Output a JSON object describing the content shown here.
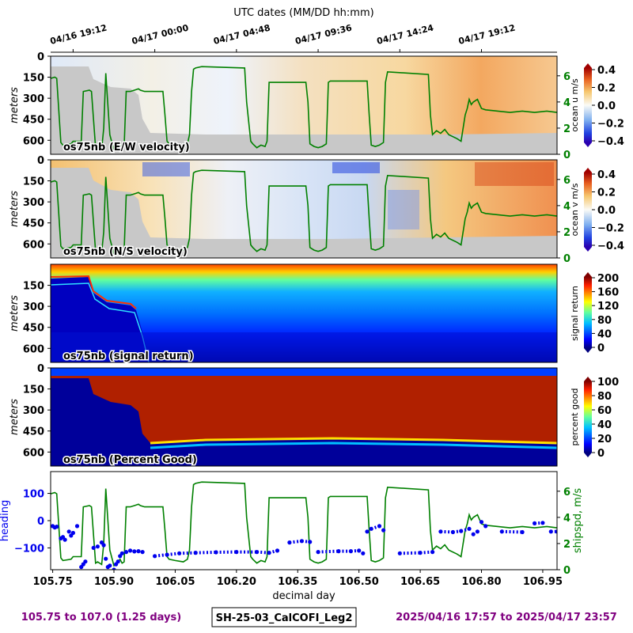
{
  "figure": {
    "top_axis_title": "UTC dates (MM/DD hh:mm)",
    "top_ticks": [
      "04/16 19:12",
      "04/17 00:00",
      "04/17 04:48",
      "04/17 09:36",
      "04/17 14:24",
      "04/17 19:12"
    ],
    "bottom_left_caption": "105.75 to 107.0 (1.25 days)",
    "bottom_center_caption": "SH-25-03_CalCOFI_Leg2",
    "bottom_right_caption": "2025/04/16 17:57 to 2025/04/17 23:57",
    "colors": {
      "caption": "#800080",
      "shipspeed": "#008000",
      "heading": "#0000ee",
      "land_mask": "#c8c8c8"
    }
  },
  "chart_data": [
    {
      "type": "heatmap",
      "panel_label": "os75nb (E/W velocity)",
      "ylabel": "meters",
      "yticks": [
        "0",
        "150",
        "300",
        "450",
        "600"
      ],
      "ylim": [
        700,
        0
      ],
      "colorbar_label": "ocean u m/s",
      "colorbar_ticks": [
        "0.4",
        "0.2",
        "0.0",
        "−0.2",
        "−0.4"
      ],
      "colorbar_range": [
        -0.4,
        0.4
      ],
      "right_axis_ticks": [
        "6",
        "4",
        "2",
        "0"
      ],
      "overlay": "ship speed"
    },
    {
      "type": "heatmap",
      "panel_label": "os75nb (N/S velocity)",
      "ylabel": "meters",
      "yticks": [
        "0",
        "150",
        "300",
        "450",
        "600"
      ],
      "ylim": [
        700,
        0
      ],
      "colorbar_label": "ocean v m/s",
      "colorbar_ticks": [
        "0.4",
        "0.2",
        "0.0",
        "−0.2",
        "−0.4"
      ],
      "colorbar_range": [
        -0.4,
        0.4
      ],
      "right_axis_ticks": [
        "6",
        "4",
        "2",
        "0"
      ],
      "overlay": "ship speed"
    },
    {
      "type": "heatmap",
      "panel_label": "os75nb (signal return)",
      "ylabel": "meters",
      "yticks": [
        "150",
        "300",
        "450",
        "600"
      ],
      "ylim": [
        700,
        0
      ],
      "colorbar_label": "signal return",
      "colorbar_ticks": [
        "200",
        "160",
        "120",
        "80",
        "40",
        "0"
      ],
      "colorbar_range": [
        0,
        200
      ]
    },
    {
      "type": "heatmap",
      "panel_label": "os75nb (Percent Good)",
      "ylabel": "meters",
      "yticks": [
        "0",
        "150",
        "300",
        "450",
        "600"
      ],
      "ylim": [
        700,
        0
      ],
      "colorbar_label": "percent good",
      "colorbar_ticks": [
        "100",
        "80",
        "60",
        "40",
        "20",
        "0"
      ],
      "colorbar_range": [
        0,
        100
      ]
    },
    {
      "type": "line",
      "xlabel": "decimal day",
      "xticks": [
        "105.75",
        "105.90",
        "106.05",
        "106.20",
        "106.35",
        "106.50",
        "106.65",
        "106.80",
        "106.95"
      ],
      "xlim": [
        105.745,
        106.985
      ],
      "left_axis": {
        "label": "heading",
        "ticks": [
          "100",
          "0",
          "−100"
        ],
        "range": [
          -180,
          180
        ]
      },
      "right_axis": {
        "label": "shipspd, m/s",
        "ticks": [
          "6",
          "4",
          "2",
          "0"
        ],
        "range": [
          0,
          7.5
        ]
      },
      "series": [
        {
          "name": "shipspd, m/s",
          "x": [
            105.745,
            105.755,
            105.76,
            105.77,
            105.775,
            105.795,
            105.8,
            105.82,
            105.825,
            105.84,
            105.845,
            105.855,
            105.86,
            105.87,
            105.875,
            105.88,
            105.89,
            105.9,
            105.905,
            105.915,
            105.92,
            105.925,
            105.93,
            105.94,
            105.95,
            105.96,
            105.965,
            105.975,
            106.02,
            106.025,
            106.03,
            106.035,
            106.05,
            106.07,
            106.08,
            106.085,
            106.09,
            106.095,
            106.1,
            106.115,
            106.22,
            106.225,
            106.235,
            106.24,
            106.25,
            106.26,
            106.27,
            106.275,
            106.28,
            106.37,
            106.375,
            106.38,
            106.39,
            106.4,
            106.41,
            106.42,
            106.425,
            106.43,
            106.52,
            106.525,
            106.53,
            106.54,
            106.55,
            106.56,
            106.565,
            106.57,
            106.67,
            106.675,
            106.68,
            106.69,
            106.7,
            106.71,
            106.72,
            106.74,
            106.75,
            106.76,
            106.765,
            106.77,
            106.775,
            106.78,
            106.79,
            106.8,
            106.81,
            106.84,
            106.87,
            106.9,
            106.93,
            106.96,
            106.985
          ],
          "y": [
            5.8,
            5.9,
            5.8,
            0.9,
            0.7,
            0.8,
            1.0,
            1.0,
            4.8,
            4.9,
            4.8,
            0.5,
            0.6,
            0.4,
            2.0,
            6.2,
            1.5,
            0.3,
            0.4,
            0.8,
            0.5,
            0.6,
            4.8,
            4.8,
            4.9,
            5.0,
            4.9,
            4.8,
            4.8,
            3.0,
            1.0,
            0.8,
            0.7,
            0.6,
            0.8,
            1.5,
            4.8,
            6.5,
            6.6,
            6.7,
            6.6,
            4.0,
            1.0,
            0.8,
            0.5,
            0.7,
            0.6,
            1.0,
            5.5,
            5.5,
            4.0,
            0.8,
            0.6,
            0.5,
            0.6,
            0.8,
            5.5,
            5.6,
            5.6,
            3.0,
            0.7,
            0.6,
            0.7,
            0.9,
            5.5,
            6.3,
            6.1,
            3.0,
            1.5,
            1.8,
            1.6,
            1.9,
            1.5,
            1.2,
            1.0,
            3.0,
            3.5,
            4.2,
            3.8,
            4.0,
            4.2,
            3.5,
            3.4,
            3.3,
            3.2,
            3.3,
            3.2,
            3.3,
            3.2
          ]
        },
        {
          "name": "heading",
          "x": [
            105.75,
            105.755,
            105.76,
            105.77,
            105.775,
            105.78,
            105.79,
            105.795,
            105.8,
            105.81,
            105.82,
            105.825,
            105.83,
            105.85,
            105.86,
            105.87,
            105.875,
            105.88,
            105.885,
            105.89,
            105.9,
            105.905,
            105.91,
            105.915,
            105.92,
            105.93,
            105.94,
            105.95,
            105.96,
            105.97,
            106.0,
            106.03,
            106.06,
            106.1,
            106.15,
            106.2,
            106.25,
            106.28,
            106.3,
            106.33,
            106.36,
            106.38,
            106.4,
            106.45,
            106.48,
            106.5,
            106.51,
            106.52,
            106.53,
            106.55,
            106.56,
            106.6,
            106.65,
            106.68,
            106.7,
            106.73,
            106.75,
            106.77,
            106.78,
            106.79,
            106.8,
            106.81,
            106.85,
            106.9,
            106.93,
            106.95,
            106.97,
            106.985
          ],
          "y": [
            -20,
            -25,
            -22,
            -65,
            -60,
            -70,
            -40,
            -55,
            -45,
            -20,
            -170,
            -160,
            -150,
            -100,
            -95,
            -80,
            -90,
            -140,
            -170,
            -165,
            -180,
            -160,
            -150,
            -130,
            -120,
            -115,
            -110,
            -113,
            -112,
            -115,
            -130,
            -125,
            -120,
            -118,
            -116,
            -115,
            -115,
            -118,
            -110,
            -80,
            -75,
            -78,
            -115,
            -112,
            -112,
            -110,
            -120,
            -40,
            -30,
            -20,
            -35,
            -120,
            -118,
            -115,
            -40,
            -42,
            -38,
            -30,
            -50,
            -40,
            -5,
            -20,
            -40,
            -42,
            -10,
            -8,
            -40,
            -40
          ]
        }
      ]
    }
  ]
}
